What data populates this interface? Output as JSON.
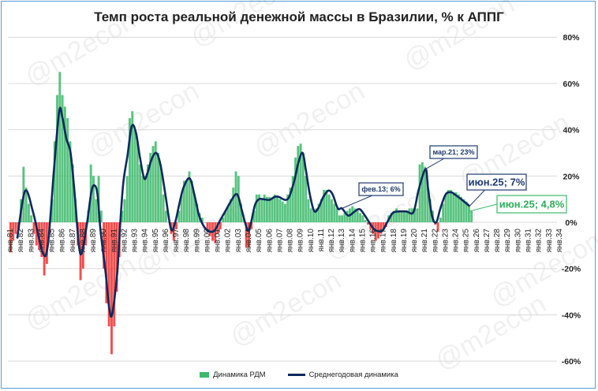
{
  "chart_data": {
    "type": "bar+line",
    "title": "Темп роста реальной денежной массы в Бразилии, % к АППГ",
    "ylim": [
      -60,
      80
    ],
    "yticks": [
      -60,
      -40,
      -20,
      0,
      20,
      40,
      60,
      80
    ],
    "ytick_labels": [
      "-60%",
      "-40%",
      "-20%",
      "0%",
      "20%",
      "40%",
      "60%",
      "80%"
    ],
    "xlim": [
      1981,
      2034.5
    ],
    "xtick_labels": [
      "янв.81",
      "янв.82",
      "янв.83",
      "янв.84",
      "янв.85",
      "янв.86",
      "янв.87",
      "янв.88",
      "янв.89",
      "янв.90",
      "янв.91",
      "янв.92",
      "янв.93",
      "янв.94",
      "янв.95",
      "янв.96",
      "янв.97",
      "янв.98",
      "янв.99",
      "янв.00",
      "янв.01",
      "янв.02",
      "янв.03",
      "янв.04",
      "янв.05",
      "янв.06",
      "янв.07",
      "янв.08",
      "янв.09",
      "янв.10",
      "янв.11",
      "янв.12",
      "янв.13",
      "янв.14",
      "янв.15",
      "янв.16",
      "янв.17",
      "янв.18",
      "янв.19",
      "янв.20",
      "янв.21",
      "янв.22",
      "янв.23",
      "янв.24",
      "янв.25",
      "янв.26",
      "янв.27",
      "янв.28",
      "янв.29",
      "янв.30",
      "янв.31",
      "янв.32",
      "янв.33",
      "янв.34"
    ],
    "grid": true,
    "legend_position": "bottom",
    "bar_series": {
      "name": "Динамика РДМ",
      "start": 1981.0,
      "step": 0.25,
      "positive_color": "#3cb96a",
      "negative_color": "#f03030",
      "values": [
        -13,
        -8,
        -5,
        -3,
        10,
        24,
        15,
        8,
        3,
        -5,
        -10,
        -12,
        -15,
        -23,
        -18,
        -5,
        10,
        35,
        55,
        65,
        55,
        50,
        45,
        35,
        25,
        10,
        -10,
        -25,
        -20,
        -10,
        5,
        25,
        20,
        10,
        20,
        5,
        -20,
        -35,
        -45,
        -57,
        -45,
        -30,
        -15,
        5,
        10,
        20,
        45,
        48,
        40,
        35,
        25,
        20,
        20,
        25,
        30,
        33,
        35,
        30,
        25,
        12,
        5,
        0,
        -5,
        -8,
        -3,
        5,
        12,
        18,
        18,
        22,
        18,
        12,
        8,
        4,
        2,
        0,
        -3,
        -6,
        -8,
        -9,
        -5,
        -3,
        2,
        5,
        7,
        10,
        15,
        22,
        20,
        8,
        2,
        -11,
        -11,
        -3,
        5,
        12,
        12,
        10,
        12,
        11,
        11,
        10,
        12,
        11,
        10,
        9,
        8,
        12,
        15,
        20,
        28,
        33,
        34,
        30,
        20,
        10,
        6,
        5,
        6,
        8,
        10,
        14,
        14,
        12,
        10,
        8,
        6,
        3,
        3,
        4,
        5,
        6,
        7,
        6,
        5,
        4,
        3,
        1,
        -1,
        -3,
        -5,
        -8,
        -7,
        -5,
        -3,
        -2,
        3,
        4,
        5,
        6,
        5,
        5,
        5,
        5,
        6,
        6,
        6,
        6,
        25,
        26,
        24,
        18,
        10,
        5,
        -1,
        -4,
        2,
        8,
        12,
        14,
        14,
        13,
        13,
        12,
        11,
        10,
        9,
        7,
        4.8
      ]
    },
    "line_series": {
      "name": "Среднегодовая динамика",
      "color": "#0d2a5e",
      "points": [
        [
          1981.75,
          -7
        ],
        [
          1982.5,
          13.5
        ],
        [
          1983.3,
          4
        ],
        [
          1984.2,
          -13
        ],
        [
          1984.7,
          -10
        ],
        [
          1985.3,
          23
        ],
        [
          1985.8,
          48
        ],
        [
          1986.1,
          45.5
        ],
        [
          1986.5,
          36
        ],
        [
          1986.9,
          30
        ],
        [
          1987.3,
          12
        ],
        [
          1987.7,
          -10
        ],
        [
          1988.0,
          -13
        ],
        [
          1988.5,
          0
        ],
        [
          1988.9,
          13
        ],
        [
          1989.2,
          16
        ],
        [
          1989.5,
          12
        ],
        [
          1989.8,
          -4
        ],
        [
          1990.3,
          -22.5
        ],
        [
          1990.6,
          -36
        ],
        [
          1990.9,
          -40
        ],
        [
          1991.4,
          -22
        ],
        [
          1991.7,
          0
        ],
        [
          1992.0,
          17.5
        ],
        [
          1992.4,
          29
        ],
        [
          1992.8,
          41.5
        ],
        [
          1993.2,
          39
        ],
        [
          1993.6,
          28
        ],
        [
          1994.0,
          19
        ],
        [
          1994.3,
          21
        ],
        [
          1994.7,
          27
        ],
        [
          1995.1,
          30
        ],
        [
          1995.4,
          28
        ],
        [
          1995.7,
          22
        ],
        [
          1996.1,
          10.6
        ],
        [
          1996.6,
          -3
        ],
        [
          1997.0,
          0
        ],
        [
          1997.4,
          8
        ],
        [
          1997.8,
          15
        ],
        [
          1998.4,
          19
        ],
        [
          1998.9,
          11
        ],
        [
          1999.3,
          3
        ],
        [
          1999.8,
          -2
        ],
        [
          2000.3,
          -4
        ],
        [
          2000.8,
          -3.5
        ],
        [
          2001.3,
          0.5
        ],
        [
          2001.8,
          4.5
        ],
        [
          2002.3,
          8.5
        ],
        [
          2002.8,
          12
        ],
        [
          2003.1,
          11
        ],
        [
          2003.5,
          4
        ],
        [
          2004.0,
          -3.4
        ],
        [
          2004.3,
          -0.5
        ],
        [
          2004.7,
          7.5
        ],
        [
          2005.1,
          10
        ],
        [
          2005.5,
          10
        ],
        [
          2006.1,
          9.7
        ],
        [
          2006.6,
          11
        ],
        [
          2007.0,
          11
        ],
        [
          2007.6,
          9.7
        ],
        [
          2008.0,
          11
        ],
        [
          2008.5,
          18
        ],
        [
          2008.9,
          26
        ],
        [
          2009.3,
          30
        ],
        [
          2009.6,
          23
        ],
        [
          2010.0,
          12
        ],
        [
          2010.4,
          5
        ],
        [
          2010.8,
          6
        ],
        [
          2011.3,
          11
        ],
        [
          2011.8,
          13.7
        ],
        [
          2012.2,
          12
        ],
        [
          2012.7,
          6
        ],
        [
          2013.1,
          6
        ],
        [
          2013.7,
          2.9
        ],
        [
          2014.3,
          4.6
        ],
        [
          2014.8,
          5.7
        ],
        [
          2015.3,
          3
        ],
        [
          2015.8,
          -0.5
        ],
        [
          2016.2,
          -3
        ],
        [
          2016.5,
          -3.7
        ],
        [
          2017.0,
          -3.7
        ],
        [
          2017.5,
          0.3
        ],
        [
          2018.0,
          4
        ],
        [
          2018.6,
          4.7
        ],
        [
          2019.3,
          4.7
        ],
        [
          2020.0,
          4.4
        ],
        [
          2020.5,
          14
        ],
        [
          2021.17,
          23
        ],
        [
          2021.4,
          15
        ],
        [
          2021.8,
          2.7
        ],
        [
          2022.2,
          0
        ],
        [
          2022.6,
          6
        ],
        [
          2023.1,
          12
        ],
        [
          2023.6,
          13
        ],
        [
          2024.0,
          12
        ],
        [
          2024.6,
          10
        ],
        [
          2025.42,
          7
        ]
      ]
    },
    "annotations": [
      {
        "text": "фев.13; 6%",
        "x": 2013.1,
        "y": 6,
        "style": "navy"
      },
      {
        "text": "мар.21; 23%",
        "x": 2021.17,
        "y": 23,
        "style": "navy"
      },
      {
        "text": "июн.25; 7%",
        "x": 2025.42,
        "y": 7,
        "style": "navy-large"
      },
      {
        "text": "июн.25; 4,8%",
        "x": 2025.42,
        "y": 4.8,
        "style": "green-large"
      }
    ],
    "watermark": "@m2econ"
  }
}
